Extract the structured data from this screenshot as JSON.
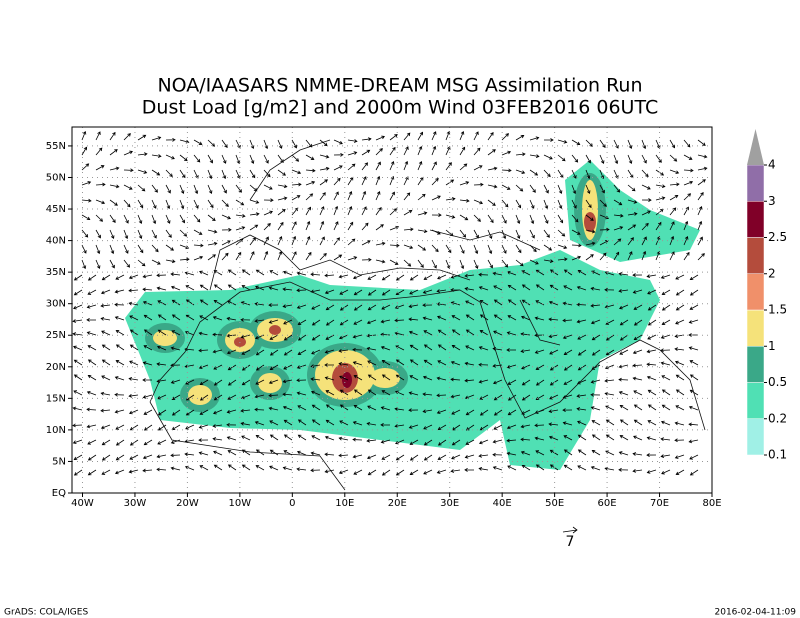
{
  "map": {
    "title": [
      "NOA/IAASARS NMME-DREAM MSG Assimilation Run",
      "Dust Load [g/m2] and 2000m Wind 03FEB2016 06UTC"
    ],
    "xlim": [
      -42,
      80
    ],
    "ylim": [
      0,
      58
    ],
    "xticks": [
      {
        "value": -40,
        "label": "40W"
      },
      {
        "value": -30,
        "label": "30W"
      },
      {
        "value": -20,
        "label": "20W"
      },
      {
        "value": -10,
        "label": "10W"
      },
      0,
      {
        "value": 10,
        "label": "10E"
      },
      {
        "value": 20,
        "label": "20E"
      },
      {
        "value": 30,
        "label": "30E"
      },
      {
        "value": 40,
        "label": "40E"
      },
      {
        "value": 50,
        "label": "50E"
      },
      {
        "value": 60,
        "label": "60E"
      },
      {
        "value": 70,
        "label": "70E"
      },
      {
        "value": 80,
        "label": "80E"
      }
    ],
    "yticks": [
      {
        "value": 0,
        "label": "EQ"
      },
      {
        "value": 5,
        "label": "5N"
      },
      {
        "value": 10,
        "label": "10N"
      },
      {
        "value": 15,
        "label": "15N"
      },
      {
        "value": 20,
        "label": "20N"
      },
      {
        "value": 25,
        "label": "25N"
      },
      {
        "value": 30,
        "label": "30N"
      },
      {
        "value": 35,
        "label": "35N"
      },
      {
        "value": 40,
        "label": "40N"
      },
      {
        "value": 45,
        "label": "45N"
      },
      {
        "value": 50,
        "label": "50N"
      },
      {
        "value": 55,
        "label": "55N"
      }
    ],
    "grid": true,
    "colorbar": {
      "levels": [
        0.1,
        0.2,
        0.5,
        1,
        1.5,
        2,
        2.5,
        3,
        4
      ],
      "colors": [
        "#a0f0e6",
        "#50e0b4",
        "#3aa888",
        "#f5e27a",
        "#f0906a",
        "#b44c3c",
        "#800028",
        "#906ea8"
      ],
      "over_color": "#a0a0a0"
    },
    "wind_reference": 7
  },
  "footer": {
    "left": "GrADS: COLA/IGES",
    "right": "2016-02-04-11:09"
  }
}
